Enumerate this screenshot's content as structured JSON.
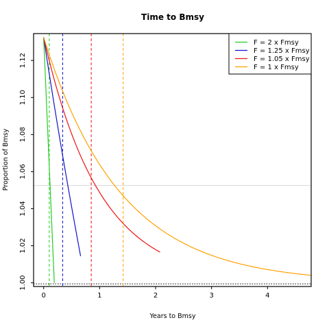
{
  "chart_data": {
    "type": "line",
    "title": "Time to Bmsy",
    "xlabel": "Years to Bmsy",
    "ylabel": "Proportion of Bmsy",
    "xlim": [
      -0.18,
      4.78
    ],
    "ylim": [
      0.998,
      1.1345
    ],
    "x_ticks": [
      "0",
      "1",
      "2",
      "3",
      "4"
    ],
    "y_ticks": [
      "1.00",
      "1.02",
      "1.04",
      "1.06",
      "1.08",
      "1.10",
      "1.12"
    ],
    "grid": false,
    "legend_position": "top-right",
    "start_value": 1.1325,
    "reference_line": 1.0,
    "horizontal_guide": 1.0525,
    "series": [
      {
        "name": "F = 2 x Fmsy",
        "color": "#22cc22",
        "k": 0.26,
        "curvature": 0.0,
        "end_x": 0.19,
        "marker_x": 0.1
      },
      {
        "name": "F = 1.25 x Fmsy",
        "color": "#1111cc",
        "k": 0.65,
        "curvature": 0.3,
        "end_x": 0.66,
        "marker_x": 0.34
      },
      {
        "name": "F = 1.05 x Fmsy",
        "color": "#ee1111",
        "k": 1.0,
        "curvature": 1.0,
        "end_x": 2.08,
        "marker_x": 0.85
      },
      {
        "name": "F = 1 x Fmsy",
        "color": "#ffa000",
        "k": 1.37,
        "curvature": 1.0,
        "end_x": 4.78,
        "marker_x": 1.42
      }
    ]
  }
}
